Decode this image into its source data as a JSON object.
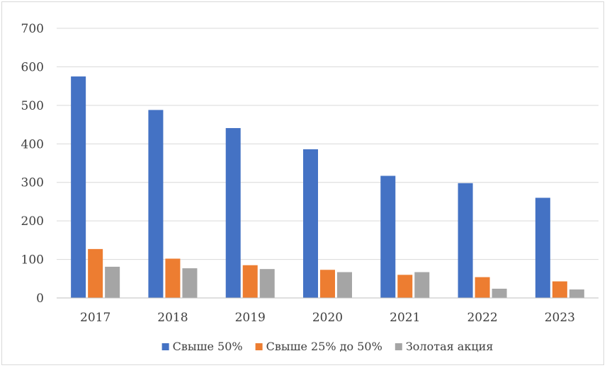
{
  "chart_data": {
    "type": "bar",
    "categories": [
      "2017",
      "2018",
      "2019",
      "2020",
      "2021",
      "2022",
      "2023"
    ],
    "series": [
      {
        "name": "Свыше 50%",
        "color": "#4472c4",
        "values": [
          575,
          488,
          441,
          386,
          317,
          298,
          260
        ]
      },
      {
        "name": "Свыше 25% до 50%",
        "color": "#ed7d31",
        "values": [
          127,
          102,
          85,
          73,
          60,
          54,
          43
        ]
      },
      {
        "name": "Золотая акция",
        "color": "#a5a5a5",
        "values": [
          81,
          77,
          75,
          67,
          67,
          24,
          22
        ]
      }
    ],
    "yticks": [
      "0",
      "100",
      "200",
      "300",
      "400",
      "500",
      "600",
      "700"
    ],
    "ylim": [
      0,
      700
    ],
    "grid": true,
    "legend_position": "bottom"
  }
}
